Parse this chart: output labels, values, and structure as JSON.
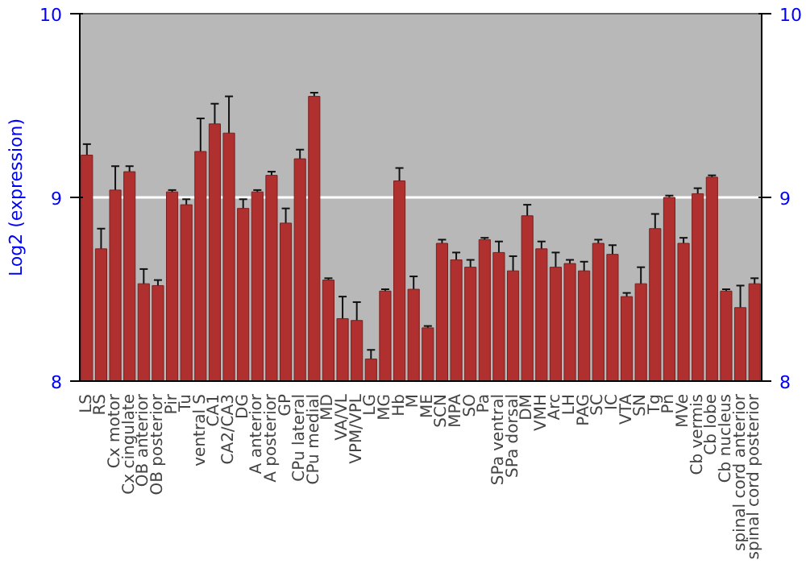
{
  "chart_data": {
    "type": "bar",
    "ylabel": "Log2 (expression)",
    "categories": [
      "LS",
      "RS",
      "Cx motor",
      "Cx cingulate",
      "OB anterior",
      "OB posterior",
      "Pir",
      "Tu",
      "ventral S",
      "CA1",
      "CA2/CA3",
      "DG",
      "A anterior",
      "A posterior",
      "GP",
      "CPu lateral",
      "CPu medial",
      "MD",
      "VA/VL",
      "VPM/VPL",
      "LG",
      "MG",
      "Hb",
      "M",
      "ME",
      "SCN",
      "MPA",
      "SO",
      "Pa",
      "SPa ventral",
      "SPa dorsal",
      "DM",
      "VMH",
      "Arc",
      "LH",
      "PAG",
      "SC",
      "IC",
      "VTA",
      "SN",
      "Tg",
      "Pn",
      "MVe",
      "Cb vermis",
      "Cb lobe",
      "Cb nucleus",
      "spinal cord anterior",
      "spinal cord posterior"
    ],
    "values": [
      9.23,
      8.72,
      9.04,
      9.14,
      8.53,
      8.52,
      9.03,
      8.96,
      9.25,
      9.4,
      9.35,
      8.94,
      9.03,
      9.12,
      8.86,
      9.21,
      9.55,
      8.55,
      8.34,
      8.33,
      8.12,
      8.49,
      9.09,
      8.5,
      8.29,
      8.75,
      8.66,
      8.62,
      8.77,
      8.7,
      8.6,
      8.9,
      8.72,
      8.62,
      8.64,
      8.6,
      8.75,
      8.69,
      8.46,
      8.53,
      8.83,
      9.0,
      8.75,
      9.02,
      9.11,
      8.49,
      8.4,
      8.53
    ],
    "errors": [
      0.06,
      0.11,
      0.13,
      0.03,
      0.08,
      0.03,
      0.01,
      0.03,
      0.18,
      0.11,
      0.2,
      0.05,
      0.01,
      0.02,
      0.08,
      0.05,
      0.02,
      0.01,
      0.12,
      0.1,
      0.05,
      0.01,
      0.07,
      0.07,
      0.01,
      0.02,
      0.04,
      0.04,
      0.01,
      0.06,
      0.08,
      0.06,
      0.04,
      0.08,
      0.02,
      0.05,
      0.02,
      0.05,
      0.02,
      0.09,
      0.08,
      0.01,
      0.03,
      0.03,
      0.01,
      0.01,
      0.12,
      0.03
    ],
    "color": "#b03030",
    "ylim": [
      8,
      10
    ],
    "yticks": [
      8,
      9,
      10
    ],
    "y2lim": [
      8,
      10
    ],
    "y2ticks": [
      8,
      9,
      10
    ],
    "grid": "y"
  }
}
